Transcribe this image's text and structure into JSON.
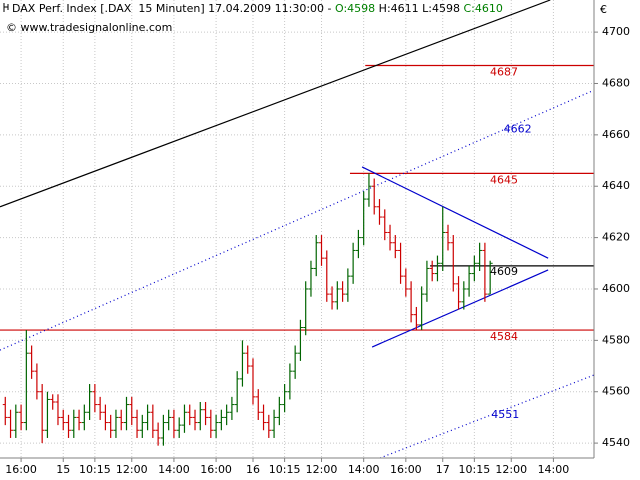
{
  "chart_data": {
    "type": "ohlc",
    "title_parts": [
      {
        "text": "DAX Perf. Index [.DAX  15 Minuten] 17.04.2009 11:30:00 - ",
        "color": "#000000"
      },
      {
        "text": "O:4598",
        "color": "#008000"
      },
      {
        "text": " H:4611 L:4598 ",
        "color": "#000000"
      },
      {
        "text": "C:4610",
        "color": "#008000"
      }
    ],
    "subtitle": "© www.tradesignalonline.com",
    "y_unit": "€",
    "xlim": [
      -4,
      108.7
    ],
    "ylim": [
      4534.2,
      4712.5
    ],
    "yticks": [
      4540,
      4560,
      4580,
      4600,
      4620,
      4640,
      4660,
      4680,
      4700
    ],
    "xticks": [
      {
        "value": 0,
        "label": "16:00"
      },
      {
        "value": 8,
        "label": "15"
      },
      {
        "value": 14,
        "label": "10:15"
      },
      {
        "value": 21,
        "label": "12:00"
      },
      {
        "value": 29,
        "label": "14:00"
      },
      {
        "value": 37,
        "label": "16:00"
      },
      {
        "value": 44,
        "label": "16"
      },
      {
        "value": 50,
        "label": "10:15"
      },
      {
        "value": 57,
        "label": "12:00"
      },
      {
        "value": 65,
        "label": "14:00"
      },
      {
        "value": 73,
        "label": "16:00"
      },
      {
        "value": 80,
        "label": "17"
      },
      {
        "value": 86,
        "label": "10:15"
      },
      {
        "value": 93,
        "label": "12:00"
      },
      {
        "value": 101,
        "label": "14:00"
      }
    ],
    "grid": true,
    "up_color": "#006400",
    "down_color": "#cc0000",
    "x": [
      -3,
      -2,
      -1,
      0,
      1,
      2,
      3,
      4,
      5,
      6,
      7,
      8,
      9,
      10,
      11,
      12,
      13,
      14,
      15,
      16,
      17,
      18,
      19,
      20,
      21,
      22,
      23,
      24,
      25,
      26,
      27,
      28,
      29,
      30,
      31,
      32,
      33,
      34,
      35,
      36,
      37,
      38,
      39,
      40,
      41,
      42,
      43,
      44,
      45,
      46,
      47,
      48,
      49,
      50,
      51,
      52,
      53,
      54,
      55,
      56,
      57,
      58,
      59,
      60,
      61,
      62,
      63,
      64,
      65,
      66,
      67,
      68,
      69,
      70,
      71,
      72,
      73,
      74,
      75,
      76,
      77,
      78,
      79,
      80,
      81,
      82,
      83,
      84,
      85,
      86,
      87,
      88,
      89
    ],
    "open": [
      4555,
      4550,
      4545,
      4552,
      4548,
      4575,
      4568,
      4560,
      4545,
      4557,
      4556,
      4550,
      4548,
      4545,
      4550,
      4548,
      4552,
      4560,
      4555,
      4552,
      4548,
      4545,
      4550,
      4548,
      4555,
      4550,
      4545,
      4548,
      4552,
      4545,
      4542,
      4548,
      4550,
      4545,
      4547,
      4552,
      4550,
      4548,
      4553,
      4550,
      4545,
      4548,
      4550,
      4552,
      4555,
      4565,
      4575,
      4570,
      4558,
      4552,
      4548,
      4545,
      4550,
      4555,
      4560,
      4568,
      4575,
      4585,
      4600,
      4608,
      4618,
      4612,
      4598,
      4595,
      4600,
      4598,
      4605,
      4615,
      4620,
      4635,
      4640,
      4632,
      4628,
      4622,
      4618,
      4615,
      4605,
      4600,
      4590,
      4586,
      4598,
      4608,
      4606,
      4610,
      4622,
      4618,
      4602,
      4595,
      4600,
      4606,
      4610,
      4615,
      4598
    ],
    "high": [
      4558,
      4553,
      4555,
      4555,
      4584,
      4578,
      4571,
      4563,
      4560,
      4559,
      4559,
      4553,
      4551,
      4553,
      4553,
      4555,
      4563,
      4563,
      4558,
      4555,
      4551,
      4553,
      4553,
      4558,
      4558,
      4553,
      4551,
      4555,
      4555,
      4548,
      4551,
      4553,
      4553,
      4550,
      4555,
      4555,
      4553,
      4556,
      4556,
      4553,
      4551,
      4553,
      4555,
      4558,
      4568,
      4580,
      4578,
      4573,
      4561,
      4555,
      4551,
      4553,
      4558,
      4563,
      4571,
      4578,
      4588,
      4603,
      4611,
      4621,
      4621,
      4615,
      4601,
      4603,
      4603,
      4608,
      4618,
      4623,
      4638,
      4645,
      4643,
      4635,
      4631,
      4625,
      4621,
      4618,
      4608,
      4603,
      4593,
      4601,
      4611,
      4611,
      4613,
      4632,
      4625,
      4621,
      4605,
      4603,
      4609,
      4613,
      4618,
      4618,
      4611
    ],
    "low": [
      4547,
      4542,
      4542,
      4545,
      4545,
      4565,
      4557,
      4540,
      4542,
      4553,
      4547,
      4545,
      4542,
      4542,
      4545,
      4545,
      4549,
      4552,
      4549,
      4545,
      4542,
      4542,
      4545,
      4545,
      4547,
      4542,
      4542,
      4545,
      4542,
      4539,
      4539,
      4545,
      4542,
      4542,
      4544,
      4547,
      4545,
      4545,
      4547,
      4542,
      4542,
      4545,
      4547,
      4549,
      4552,
      4562,
      4567,
      4555,
      4549,
      4545,
      4542,
      4542,
      4547,
      4552,
      4557,
      4565,
      4572,
      4582,
      4597,
      4605,
      4609,
      4595,
      4592,
      4592,
      4595,
      4595,
      4602,
      4612,
      4617,
      4632,
      4629,
      4625,
      4619,
      4615,
      4612,
      4602,
      4597,
      4587,
      4584,
      4584,
      4595,
      4603,
      4603,
      4607,
      4615,
      4599,
      4592,
      4592,
      4597,
      4603,
      4607,
      4595,
      4598
    ],
    "close": [
      4550,
      4545,
      4552,
      4548,
      4575,
      4568,
      4560,
      4545,
      4557,
      4556,
      4550,
      4548,
      4545,
      4550,
      4548,
      4552,
      4560,
      4555,
      4552,
      4548,
      4545,
      4550,
      4548,
      4555,
      4550,
      4545,
      4548,
      4552,
      4545,
      4542,
      4548,
      4550,
      4545,
      4547,
      4552,
      4550,
      4548,
      4553,
      4550,
      4545,
      4548,
      4550,
      4552,
      4555,
      4565,
      4575,
      4570,
      4558,
      4552,
      4548,
      4545,
      4550,
      4555,
      4560,
      4568,
      4575,
      4585,
      4600,
      4608,
      4618,
      4612,
      4598,
      4595,
      4600,
      4598,
      4605,
      4615,
      4620,
      4635,
      4640,
      4632,
      4628,
      4622,
      4618,
      4615,
      4605,
      4600,
      4590,
      4586,
      4598,
      4608,
      4606,
      4610,
      4622,
      4618,
      4602,
      4595,
      4600,
      4606,
      4610,
      4615,
      4598,
      4610
    ],
    "levels": [
      {
        "value": 4687,
        "from": 65.3,
        "color": "#cc0000"
      },
      {
        "value": 4645,
        "from": 62.4,
        "color": "#cc0000"
      },
      {
        "value": 4584,
        "from": -4,
        "color": "#cc0000"
      },
      {
        "value": 4609,
        "from": 77.6,
        "color": "#000000"
      }
    ],
    "trendlines": [
      {
        "x": [
          -4,
          100.4
        ],
        "y": [
          4632,
          4712.5
        ],
        "color": "#000000",
        "dotted": false
      },
      {
        "x": [
          -4,
          108.7
        ],
        "y": [
          4576.2,
          4677.4
        ],
        "color": "#0000cc",
        "dotted": true,
        "label": 4662
      },
      {
        "x": [
          68.1,
          108.7
        ],
        "y": [
          4534.2,
          4566.5
        ],
        "color": "#0000cc",
        "dotted": true,
        "label": 4551
      },
      {
        "x": [
          64.7,
          100
        ],
        "y": [
          4647.5,
          4612
        ],
        "color": "#0000cc",
        "dotted": false
      },
      {
        "x": [
          66.6,
          100
        ],
        "y": [
          4577.4,
          4607.4
        ],
        "color": "#0000cc",
        "dotted": false
      }
    ]
  }
}
